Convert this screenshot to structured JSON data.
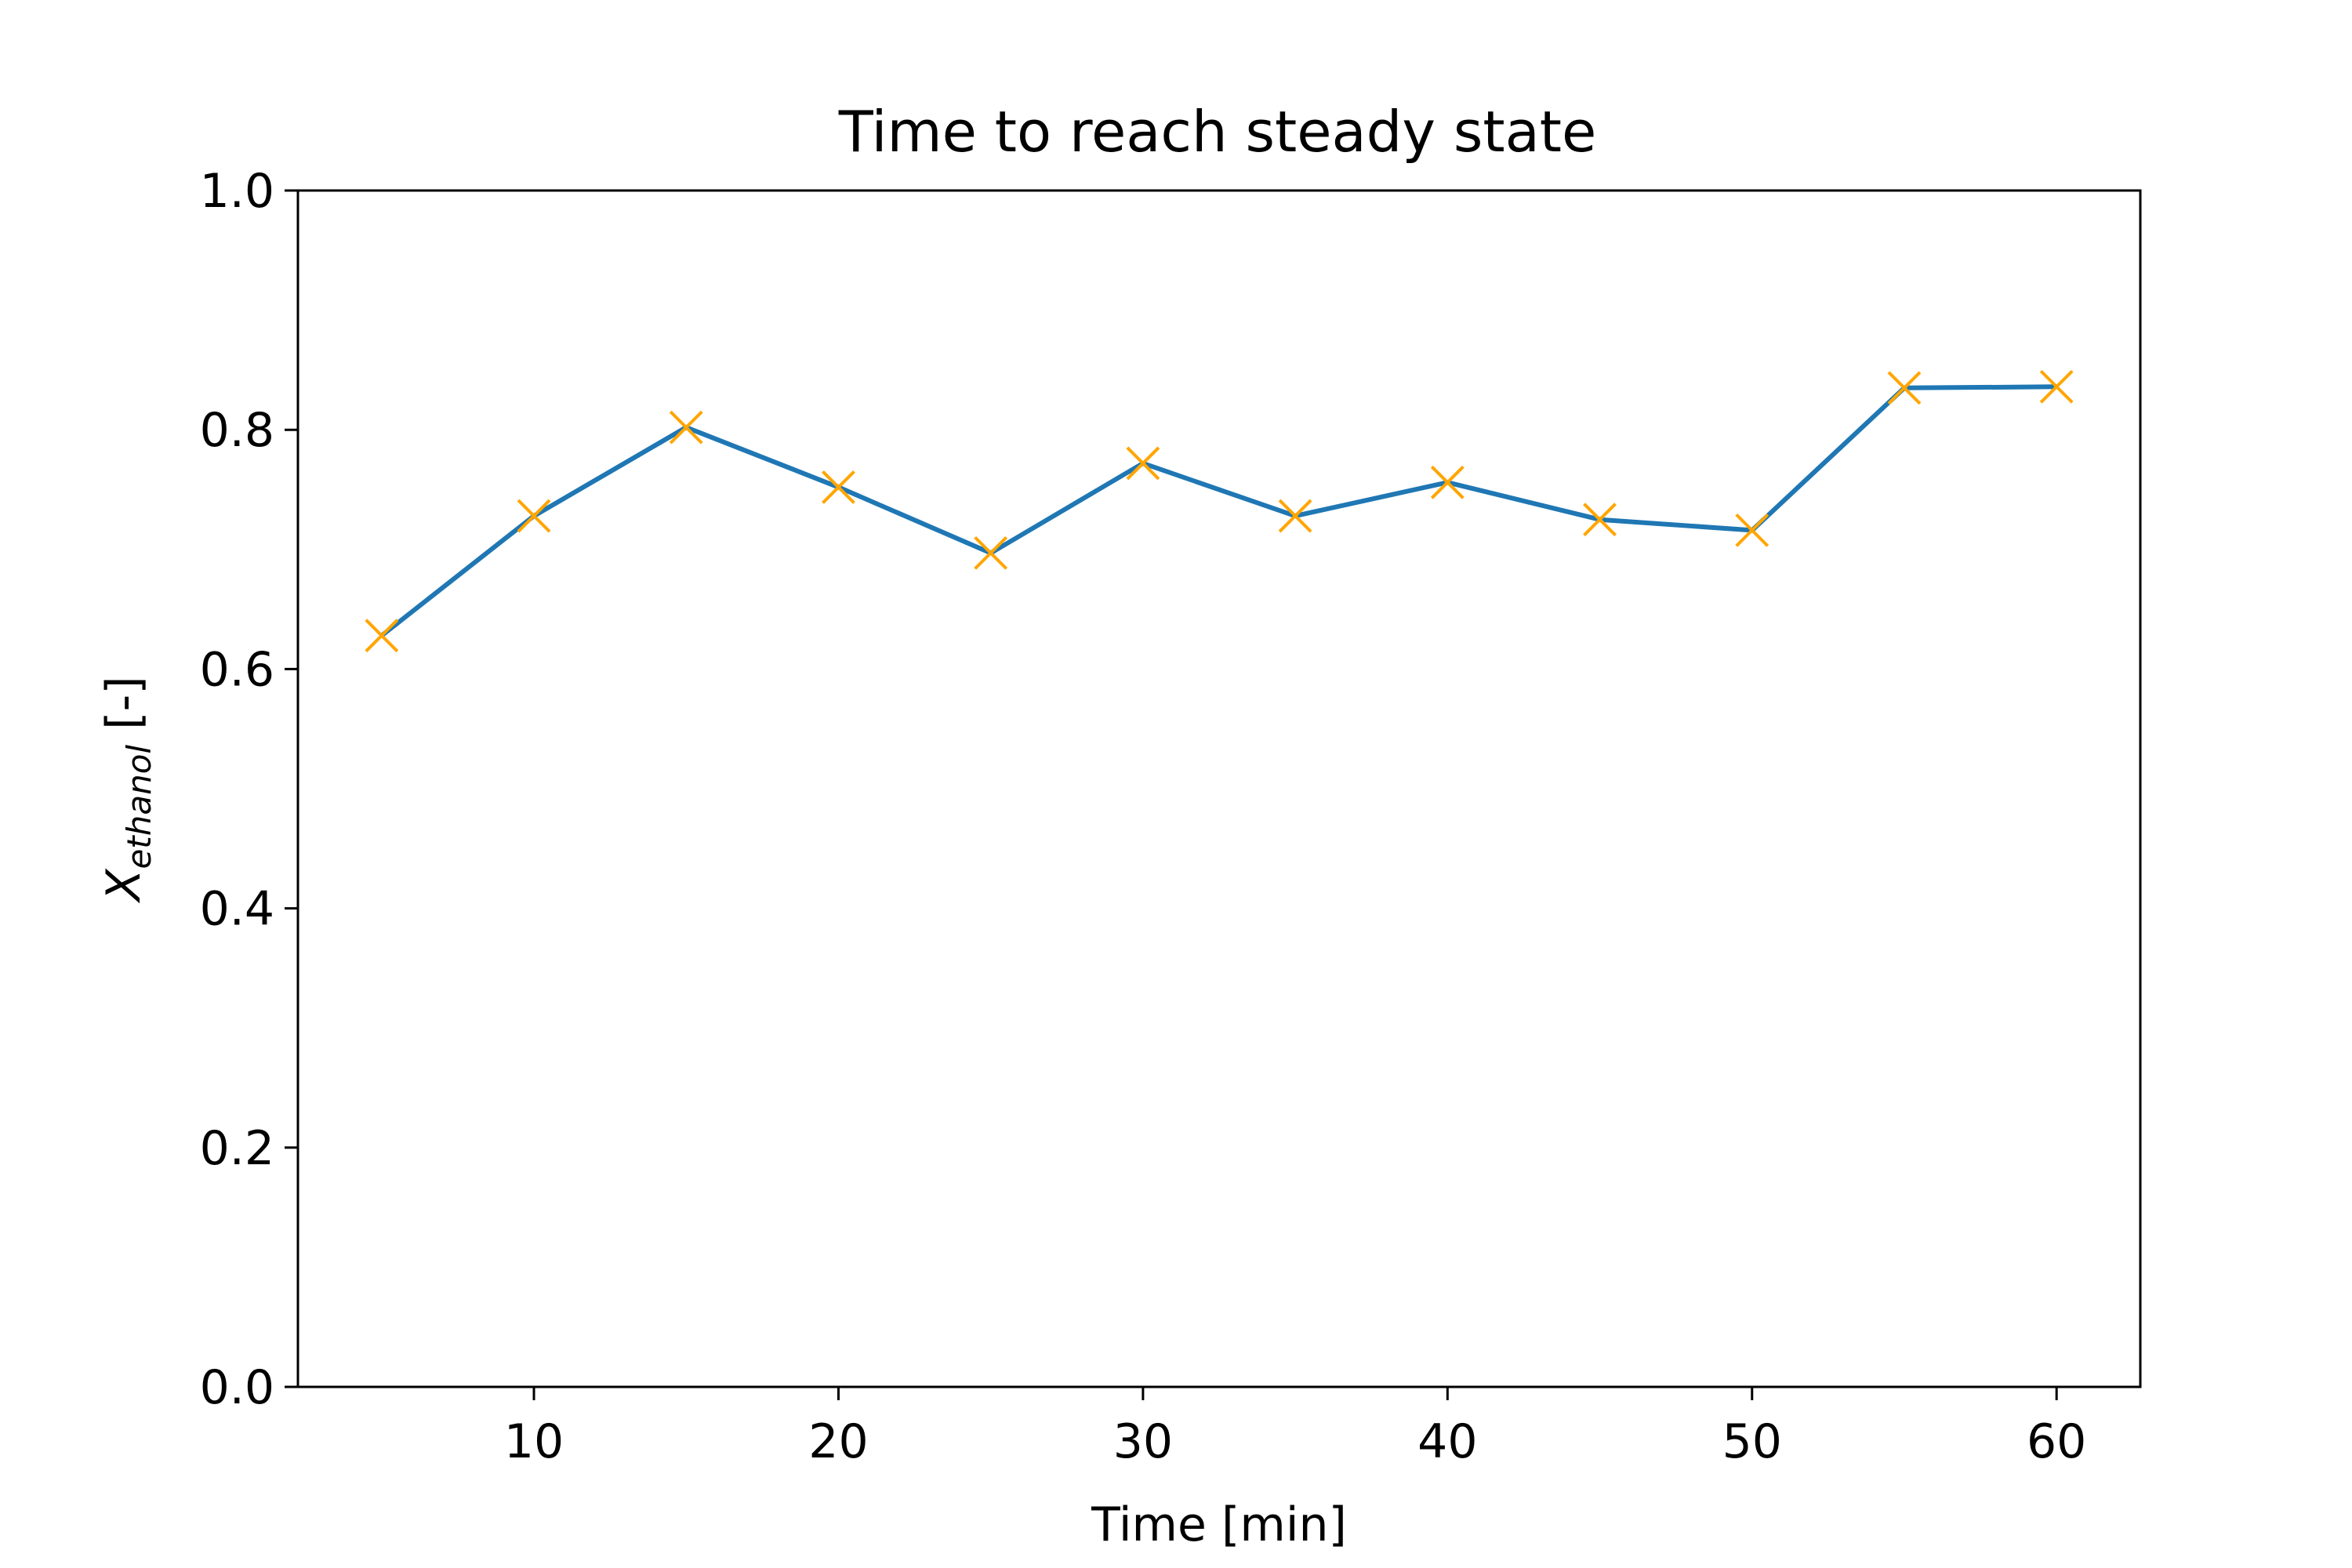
{
  "chart_data": {
    "type": "line",
    "title": "Time to reach steady state",
    "xlabel": "Time [min]",
    "ylabel": {
      "main": "X",
      "subscript": "ethanol",
      "suffix": " [-]"
    },
    "xlim": [
      2.25,
      62.75
    ],
    "ylim": [
      0.0,
      1.0
    ],
    "xticks": [
      10,
      20,
      30,
      40,
      50,
      60
    ],
    "xtick_labels": [
      "10",
      "20",
      "30",
      "40",
      "50",
      "60"
    ],
    "yticks": [
      0.0,
      0.2,
      0.4,
      0.6,
      0.8,
      1.0
    ],
    "ytick_labels": [
      "0.0",
      "0.2",
      "0.4",
      "0.6",
      "0.8",
      "1.0"
    ],
    "grid": false,
    "series": [
      {
        "x": [
          5,
          10,
          15,
          20,
          25,
          30,
          35,
          40,
          45,
          50,
          55,
          60
        ],
        "y": [
          0.628,
          0.728,
          0.802,
          0.752,
          0.697,
          0.772,
          0.728,
          0.756,
          0.725,
          0.716,
          0.835,
          0.836
        ],
        "line_color": "#1f77b4",
        "marker": "x",
        "marker_color": "#ffa500"
      }
    ]
  }
}
